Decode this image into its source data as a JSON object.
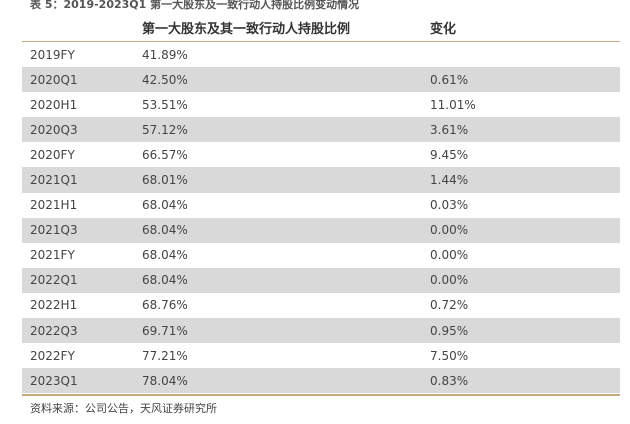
{
  "caption": "表 5：2019-2023Q1 第一大股东及一致行动人持股比例变动情况",
  "table": {
    "headers": [
      "",
      "第一大股东及其一致行动人持股比例",
      "变化"
    ],
    "rows": [
      {
        "period": "2019FY",
        "ratio": "41.89%",
        "change": ""
      },
      {
        "period": "2020Q1",
        "ratio": "42.50%",
        "change": "0.61%"
      },
      {
        "period": "2020H1",
        "ratio": "53.51%",
        "change": "11.01%"
      },
      {
        "period": "2020Q3",
        "ratio": "57.12%",
        "change": "3.61%"
      },
      {
        "period": "2020FY",
        "ratio": "66.57%",
        "change": "9.45%"
      },
      {
        "period": "2021Q1",
        "ratio": "68.01%",
        "change": "1.44%"
      },
      {
        "period": "2021H1",
        "ratio": "68.04%",
        "change": "0.03%"
      },
      {
        "period": "2021Q3",
        "ratio": "68.04%",
        "change": "0.00%"
      },
      {
        "period": "2021FY",
        "ratio": "68.04%",
        "change": "0.00%"
      },
      {
        "period": "2022Q1",
        "ratio": "68.04%",
        "change": "0.00%"
      },
      {
        "period": "2022H1",
        "ratio": "68.76%",
        "change": "0.72%"
      },
      {
        "period": "2022Q3",
        "ratio": "69.71%",
        "change": "0.95%"
      },
      {
        "period": "2022FY",
        "ratio": "77.21%",
        "change": "7.50%"
      },
      {
        "period": "2023Q1",
        "ratio": "78.04%",
        "change": "0.83%"
      }
    ]
  },
  "source": "资料来源：公司公告，天风证券研究所",
  "colors": {
    "shaded_row": "#d9d9d9",
    "rule": "#c8a982"
  }
}
